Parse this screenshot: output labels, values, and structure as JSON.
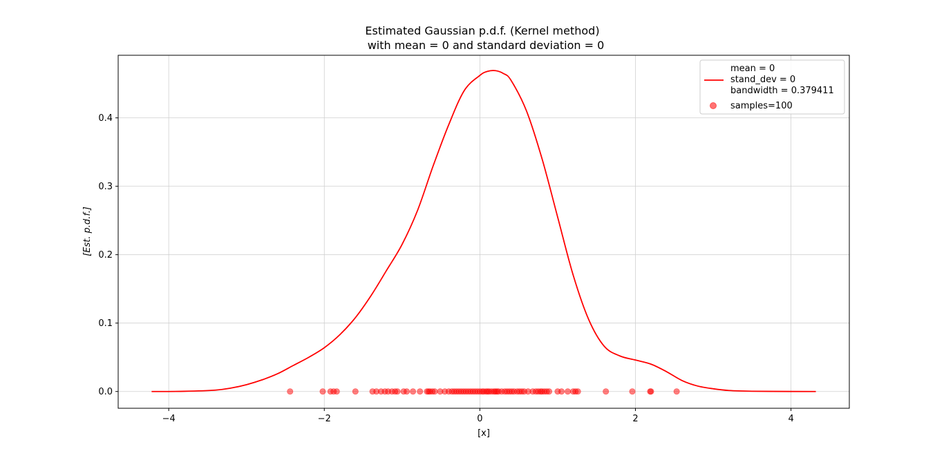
{
  "chart_data": {
    "type": "line",
    "title": "Estimated Gaussian p.d.f. (Kernel method)",
    "subtitle": "with mean = 0 and standard deviation = 0",
    "xlabel": "[x]",
    "ylabel": "[Est. p.d.f.]",
    "xlim": [
      -4.65,
      4.75
    ],
    "ylim": [
      -0.0245,
      0.4915
    ],
    "xticks": [
      -4,
      -2,
      0,
      2,
      4
    ],
    "xtick_labels": [
      "−4",
      "−2",
      "0",
      "2",
      "4"
    ],
    "yticks": [
      0.0,
      0.1,
      0.2,
      0.3,
      0.4
    ],
    "ytick_labels": [
      "0.0",
      "0.1",
      "0.2",
      "0.3",
      "0.4"
    ],
    "grid": true,
    "legend_position": "top-right",
    "colors": {
      "curve": "#ff0000",
      "samples": "#ff0000",
      "grid": "#d0d0d0",
      "axes": "#000000"
    },
    "series": [
      {
        "name": "mean = 0\nstand_dev = 0\nbandwidth = 0.379411",
        "legend_lines": [
          "mean = 0",
          "stand_dev = 0",
          "bandwidth = 0.379411"
        ],
        "kind": "line",
        "x": [
          -4.22,
          -3.8,
          -3.4,
          -3.2,
          -3.0,
          -2.8,
          -2.6,
          -2.4,
          -2.2,
          -2.0,
          -1.8,
          -1.6,
          -1.4,
          -1.2,
          -1.0,
          -0.8,
          -0.6,
          -0.4,
          -0.2,
          0.0,
          0.1,
          0.2,
          0.3,
          0.4,
          0.6,
          0.8,
          1.0,
          1.2,
          1.4,
          1.6,
          1.8,
          2.0,
          2.2,
          2.4,
          2.6,
          2.8,
          3.0,
          3.2,
          3.5,
          4.0,
          4.32
        ],
        "y": [
          0.0,
          0.0003,
          0.002,
          0.005,
          0.01,
          0.017,
          0.026,
          0.038,
          0.05,
          0.064,
          0.083,
          0.108,
          0.14,
          0.177,
          0.215,
          0.265,
          0.33,
          0.39,
          0.44,
          0.462,
          0.468,
          0.469,
          0.465,
          0.455,
          0.41,
          0.34,
          0.255,
          0.17,
          0.105,
          0.066,
          0.052,
          0.046,
          0.04,
          0.029,
          0.016,
          0.008,
          0.004,
          0.0015,
          0.0004,
          5e-05,
          0.0
        ]
      },
      {
        "name": "samples=100",
        "kind": "scatter",
        "x": [
          -2.44,
          -2.02,
          -1.92,
          -1.88,
          -1.84,
          -1.6,
          -1.38,
          -1.33,
          -1.27,
          -1.22,
          -1.18,
          -1.13,
          -1.09,
          -1.06,
          -0.98,
          -0.94,
          -0.86,
          -0.77,
          -0.68,
          -0.66,
          -0.64,
          -0.61,
          -0.58,
          -0.51,
          -0.45,
          -0.4,
          -0.36,
          -0.33,
          -0.3,
          -0.27,
          -0.24,
          -0.21,
          -0.18,
          -0.15,
          -0.12,
          -0.09,
          -0.06,
          -0.03,
          0.0,
          0.03,
          0.05,
          0.08,
          0.1,
          0.12,
          0.15,
          0.18,
          0.2,
          0.22,
          0.24,
          0.28,
          0.32,
          0.35,
          0.38,
          0.41,
          0.44,
          0.48,
          0.51,
          0.54,
          0.57,
          0.62,
          0.68,
          0.72,
          0.75,
          0.78,
          0.8,
          0.83,
          0.86,
          0.89,
          1.0,
          1.05,
          1.13,
          1.2,
          1.23,
          1.26,
          1.62,
          1.96,
          2.19,
          2.2,
          2.53
        ],
        "y": [
          0,
          0,
          0,
          0,
          0,
          0,
          0,
          0,
          0,
          0,
          0,
          0,
          0,
          0,
          0,
          0,
          0,
          0,
          0,
          0,
          0,
          0,
          0,
          0,
          0,
          0,
          0,
          0,
          0,
          0,
          0,
          0,
          0,
          0,
          0,
          0,
          0,
          0,
          0,
          0,
          0,
          0,
          0,
          0,
          0,
          0,
          0,
          0,
          0,
          0,
          0,
          0,
          0,
          0,
          0,
          0,
          0,
          0,
          0,
          0,
          0,
          0,
          0,
          0,
          0,
          0,
          0,
          0,
          0,
          0,
          0,
          0,
          0,
          0,
          0,
          0,
          0,
          0,
          0
        ]
      }
    ]
  }
}
